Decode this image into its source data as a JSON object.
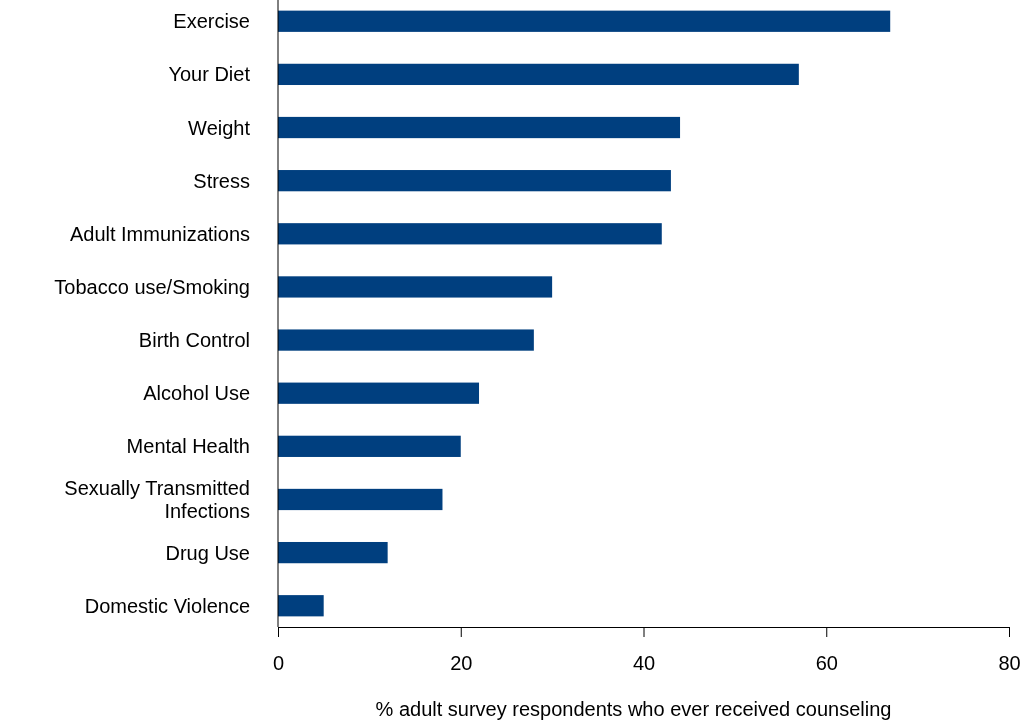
{
  "chart_data": {
    "type": "bar",
    "orientation": "horizontal",
    "xlabel": "% adult survey respondents who ever received counseling",
    "categories": [
      "Exercise",
      "Your Diet",
      "Weight",
      "Stress",
      "Adult Immunizations",
      "Tobacco use/Smoking",
      "Birth Control",
      "Alcohol Use",
      "Mental Health",
      "Sexually Transmitted Infections",
      "Drug Use",
      "Domestic Violence"
    ],
    "values": [
      67,
      57,
      44,
      43,
      42,
      30,
      28,
      22,
      20,
      18,
      12,
      5
    ],
    "color": "#003f7f",
    "xlim": [
      0,
      80
    ],
    "xticks": [
      0,
      20,
      40,
      60,
      80
    ],
    "grid": false
  }
}
